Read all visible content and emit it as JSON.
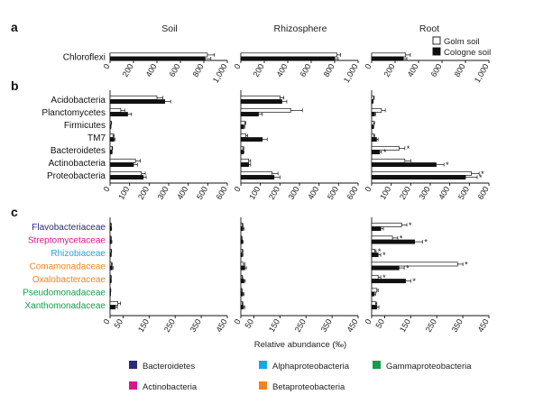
{
  "panel_letters": [
    "a",
    "b",
    "c"
  ],
  "columns": [
    "Soil",
    "Rhizosphere",
    "Root"
  ],
  "legend_top": [
    {
      "label": "Golm soil",
      "color": "#ffffff"
    },
    {
      "label": "Cologne soil",
      "color": "#111111"
    }
  ],
  "x_axis_label": "Relative abundance (‰)",
  "legend_bottom": [
    {
      "label": "Bacteroidetes",
      "color": "#2b2a7e"
    },
    {
      "label": "Alphaproteobacteria",
      "color": "#1aa7dd"
    },
    {
      "label": "Gammaproteobacteria",
      "color": "#1a9a4a"
    },
    {
      "label": "Actinobacteria",
      "color": "#d6168c"
    },
    {
      "label": "Betaproteobacteria",
      "color": "#ee8522"
    }
  ],
  "chart_data": [
    {
      "type": "bar",
      "panel": "a",
      "orientation": "horizontal",
      "xlim": [
        0,
        1000
      ],
      "ticks": [
        "0",
        "200",
        "400",
        "600",
        "800",
        "1,000"
      ],
      "tick_values": [
        0,
        200,
        400,
        600,
        800,
        1000
      ],
      "categories": [
        {
          "name": "Chloroflexi",
          "color": "#111111"
        }
      ],
      "series_names": [
        "Golm soil",
        "Cologne soil"
      ],
      "values": {
        "Soil": {
          "golm": [
            830
          ],
          "cologne": [
            810
          ],
          "golm_err": [
            60
          ],
          "cologne_err": [
            50
          ],
          "golm_star": [
            0
          ],
          "cologne_star": [
            0
          ]
        },
        "Rhizosphere": {
          "golm": [
            820
          ],
          "cologne": [
            800
          ],
          "golm_err": [
            30
          ],
          "cologne_err": [
            30
          ],
          "golm_star": [
            0
          ],
          "cologne_star": [
            0
          ]
        },
        "Root": {
          "golm": [
            290
          ],
          "cologne": [
            270
          ],
          "golm_err": [
            40
          ],
          "cologne_err": [
            30
          ],
          "golm_star": [
            0
          ],
          "cologne_star": [
            0
          ]
        }
      }
    },
    {
      "type": "bar",
      "panel": "b",
      "orientation": "horizontal",
      "xlim": [
        0,
        600
      ],
      "ticks": [
        "0",
        "100",
        "200",
        "300",
        "400",
        "500",
        "600"
      ],
      "tick_values": [
        0,
        100,
        200,
        300,
        400,
        500,
        600
      ],
      "categories": [
        {
          "name": "Acidobacteria",
          "color": "#111111"
        },
        {
          "name": "Planctomycetes",
          "color": "#111111"
        },
        {
          "name": "Firmicutes",
          "color": "#111111"
        },
        {
          "name": "TM7",
          "color": "#111111"
        },
        {
          "name": "Bacteroidetes",
          "color": "#111111"
        },
        {
          "name": "Actinobacteria",
          "color": "#111111"
        },
        {
          "name": "Proteobacteria",
          "color": "#111111"
        }
      ],
      "series_names": [
        "Golm soil",
        "Cologne soil"
      ],
      "values": {
        "Soil": {
          "golm": [
            240,
            55,
            5,
            15,
            10,
            130,
            160
          ],
          "cologne": [
            280,
            90,
            3,
            20,
            8,
            120,
            170
          ],
          "golm_err": [
            30,
            20,
            3,
            5,
            3,
            25,
            20
          ],
          "cologne_err": [
            30,
            20,
            2,
            5,
            3,
            20,
            15
          ],
          "golm_star": [
            0,
            0,
            0,
            0,
            0,
            0,
            0
          ],
          "cologne_star": [
            0,
            0,
            0,
            0,
            0,
            0,
            0
          ]
        },
        "Rhizosphere": {
          "golm": [
            200,
            255,
            20,
            25,
            10,
            40,
            160
          ],
          "cologne": [
            210,
            90,
            15,
            110,
            12,
            40,
            170
          ],
          "golm_err": [
            20,
            60,
            5,
            10,
            5,
            10,
            30
          ],
          "cologne_err": [
            25,
            20,
            5,
            25,
            5,
            10,
            30
          ],
          "golm_star": [
            0,
            0,
            0,
            0,
            0,
            0,
            0
          ],
          "cologne_star": [
            0,
            0,
            0,
            0,
            0,
            0,
            0
          ]
        },
        "Root": {
          "golm": [
            10,
            50,
            10,
            10,
            140,
            170,
            510
          ],
          "cologne": [
            5,
            15,
            8,
            25,
            40,
            330,
            480
          ],
          "golm_err": [
            3,
            20,
            5,
            5,
            30,
            30,
            40
          ],
          "cologne_err": [
            3,
            5,
            3,
            8,
            10,
            40,
            60
          ],
          "golm_star": [
            0,
            0,
            0,
            0,
            1,
            0,
            1
          ],
          "cologne_star": [
            0,
            0,
            0,
            0,
            1,
            1,
            1
          ]
        }
      }
    },
    {
      "type": "bar",
      "panel": "c",
      "orientation": "horizontal",
      "xlim": [
        0,
        450
      ],
      "ticks": [
        "0",
        "50",
        "150",
        "250",
        "350",
        "450"
      ],
      "tick_values": [
        0,
        50,
        150,
        250,
        350,
        450
      ],
      "categories": [
        {
          "name": "Flavobacteriaceae",
          "color": "#2b2a7e"
        },
        {
          "name": "Streptomycetaceae",
          "color": "#d6168c"
        },
        {
          "name": "Rhizobiaceae",
          "color": "#1aa7dd"
        },
        {
          "name": "Comamonadaceae",
          "color": "#ee8522"
        },
        {
          "name": "Oxalobacteraceae",
          "color": "#ee8522"
        },
        {
          "name": "Pseudomonadaceae",
          "color": "#1a9a4a"
        },
        {
          "name": "Xanthomonadaceae",
          "color": "#1a9a4a"
        }
      ],
      "series_names": [
        "Golm soil",
        "Cologne soil"
      ],
      "values": {
        "Soil": {
          "golm": [
            3,
            3,
            4,
            5,
            3,
            2,
            30
          ],
          "cologne": [
            4,
            5,
            3,
            8,
            3,
            1,
            20
          ],
          "golm_err": [
            2,
            2,
            2,
            3,
            2,
            1,
            10
          ],
          "cologne_err": [
            2,
            2,
            2,
            4,
            2,
            1,
            8
          ],
          "golm_star": [
            0,
            0,
            0,
            0,
            0,
            0,
            0
          ],
          "cologne_star": [
            0,
            0,
            0,
            0,
            0,
            0,
            0
          ]
        },
        "Rhizosphere": {
          "golm": [
            5,
            3,
            5,
            10,
            4,
            3,
            5
          ],
          "cologne": [
            8,
            6,
            5,
            15,
            12,
            8,
            10
          ],
          "golm_err": [
            3,
            2,
            3,
            5,
            3,
            2,
            3
          ],
          "cologne_err": [
            4,
            3,
            3,
            6,
            5,
            4,
            5
          ],
          "golm_star": [
            0,
            0,
            0,
            0,
            0,
            0,
            0
          ],
          "cologne_star": [
            0,
            0,
            0,
            0,
            0,
            0,
            0
          ]
        },
        "Root": {
          "golm": [
            115,
            80,
            12,
            330,
            25,
            20,
            15
          ],
          "cologne": [
            35,
            165,
            25,
            105,
            130,
            10,
            20
          ],
          "golm_err": [
            20,
            20,
            5,
            20,
            10,
            5,
            5
          ],
          "cologne_err": [
            10,
            30,
            10,
            20,
            20,
            5,
            8
          ],
          "golm_star": [
            1,
            1,
            1,
            1,
            1,
            0,
            0
          ],
          "cologne_star": [
            0,
            1,
            1,
            1,
            1,
            0,
            0
          ]
        }
      }
    }
  ]
}
